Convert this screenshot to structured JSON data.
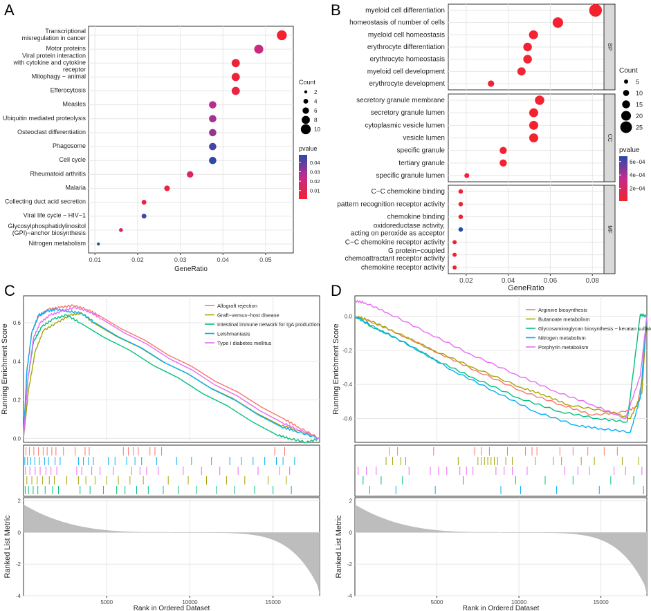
{
  "panels": {
    "a": {
      "letter": "A",
      "chart_data": {
        "type": "scatter",
        "categories": [
          "Transcriptional\nmisregulation in cancer",
          "Motor proteins",
          "Viral protein interaction\nwith cytokine and cytokine\nreceptor",
          "Mitophagy − animal",
          "Efferocytosis",
          "Measles",
          "Ubiquitin mediated proteolysis",
          "Osteoclast differentiation",
          "Phagosome",
          "Cell cycle",
          "Rheumatoid arthritis",
          "Malaria",
          "Collecting duct acid secretion",
          "Viral life cycle − HIV−1",
          "Glycosylphosphatidylinositol\n(GPI)−anchor biosynthesis",
          "Nitrogen metabolism"
        ],
        "gene_ratio": [
          0.0538,
          0.0484,
          0.043,
          0.043,
          0.043,
          0.0376,
          0.0376,
          0.0376,
          0.0376,
          0.0376,
          0.0323,
          0.0269,
          0.0215,
          0.0215,
          0.0161,
          0.0108
        ],
        "count": [
          10,
          9,
          8,
          8,
          8,
          7,
          7,
          7,
          7,
          7,
          6,
          5,
          4,
          4,
          3,
          2
        ],
        "pvalue": [
          0.001,
          0.022,
          0.004,
          0.004,
          0.006,
          0.026,
          0.029,
          0.031,
          0.044,
          0.047,
          0.012,
          0.006,
          0.006,
          0.045,
          0.012,
          0.048
        ],
        "xlabel": "GeneRatio",
        "xticks": [
          "0.01",
          "0.02",
          "0.03",
          "0.04",
          "0.05"
        ],
        "xtick_values": [
          0.01,
          0.02,
          0.03,
          0.04,
          0.05
        ],
        "xlim": [
          0.0085,
          0.0565
        ],
        "size_legend": {
          "title": "Count",
          "labels": [
            "2",
            "4",
            "6",
            "8",
            "10"
          ],
          "values": [
            2,
            4,
            6,
            8,
            10
          ]
        },
        "color_legend": {
          "title": "pvalue",
          "labels": [
            "0.04",
            "0.03",
            "0.02",
            "0.01"
          ],
          "values": [
            0.04,
            0.03,
            0.02,
            0.01
          ],
          "range": [
            0.001,
            0.048
          ]
        }
      }
    },
    "b": {
      "letter": "B",
      "chart_data": {
        "type": "scatter",
        "groups": [
          {
            "name": "BP",
            "terms": [
              "myeloid cell differentiation",
              "homeostasis of number of cells",
              "myeloid cell homeostasis",
              "erythrocyte differentiation",
              "erythrocyte homeostasis",
              "myeloid cell development",
              "erythrocyte development"
            ],
            "gene_ratio": [
              0.0815,
              0.0636,
              0.052,
              0.0492,
              0.0492,
              0.0463,
              0.0318
            ],
            "count": [
              28,
              22,
              18,
              17,
              17,
              16,
              11
            ],
            "pvalue": [
              1e-05,
              2e-05,
              2e-05,
              2e-05,
              3e-05,
              3e-05,
              4e-05
            ]
          },
          {
            "name": "CC",
            "terms": [
              "secretory granule membrane",
              "secretory granule lumen",
              "cytoplasmic vesicle lumen",
              "vesicle lumen",
              "specific granule",
              "tertiary granule",
              "specific granule lumen"
            ],
            "gene_ratio": [
              0.0549,
              0.0521,
              0.0521,
              0.0521,
              0.0376,
              0.0376,
              0.0203
            ],
            "count": [
              19,
              18,
              18,
              18,
              13,
              13,
              7
            ],
            "pvalue": [
              2e-05,
              1e-05,
              1e-05,
              1e-05,
              2e-05,
              2e-05,
              2e-05
            ]
          },
          {
            "name": "MF",
            "terms": [
              "C−C chemokine binding",
              "pattern recognition receptor activity",
              "chemokine binding",
              "oxidoreductase activity,\nacting on peroxide as acceptor",
              "C−C chemokine receptor activity",
              "G protein−coupled\nchemoattractant receptor activity",
              "chemokine receptor activity"
            ],
            "gene_ratio": [
              0.0174,
              0.0174,
              0.0174,
              0.0174,
              0.0145,
              0.0145,
              0.0145
            ],
            "count": [
              6,
              6,
              6,
              6,
              5,
              5,
              5
            ],
            "pvalue": [
              2e-05,
              2e-05,
              2e-05,
              0.00068,
              1e-05,
              1e-05,
              1e-05
            ]
          }
        ],
        "xlabel": "GeneRatio",
        "xticks": [
          "0.02",
          "0.04",
          "0.06",
          "0.08"
        ],
        "xtick_values": [
          0.02,
          0.04,
          0.06,
          0.08
        ],
        "xlim": [
          0.0115,
          0.0855
        ],
        "size_legend": {
          "title": "Count",
          "labels": [
            "5",
            "10",
            "15",
            "20",
            "25"
          ],
          "values": [
            5,
            10,
            15,
            20,
            25
          ]
        },
        "color_legend": {
          "title": "pvalue",
          "labels": [
            "6e−04",
            "4e−04",
            "2e−04"
          ],
          "values": [
            0.0006,
            0.0004,
            0.0002
          ],
          "range": [
            1e-05,
            0.00068
          ]
        }
      }
    },
    "c": {
      "letter": "C",
      "chart_data": {
        "type": "line",
        "ylabel_top": "Running Enrichment Score",
        "ylabel_bottom": "Ranked List Metric",
        "xlabel": "Rank in Ordered Dataset",
        "xticks": [
          "5000",
          "10000",
          "15000"
        ],
        "xtick_values": [
          5000,
          10000,
          15000
        ],
        "xlim": [
          0,
          17800
        ],
        "yticks_top": [
          "0.0",
          "0.2",
          "0.4",
          "0.6"
        ],
        "ytick_values_top": [
          0,
          0.2,
          0.4,
          0.6
        ],
        "ylim_top": [
          -0.02,
          0.74
        ],
        "yticks_bottom": [
          "2",
          "0",
          "-2",
          "-4"
        ],
        "ytick_values_bottom": [
          2,
          0,
          -2,
          -4
        ],
        "ylim_bottom": [
          -4,
          2.2
        ],
        "series": [
          {
            "name": "Allograft rejection",
            "color": "#f8766d",
            "x": [
              0,
              200,
              500,
              900,
              1500,
              2200,
              3000,
              3800,
              4500,
              15700,
              16500,
              17800
            ],
            "y": [
              0,
              0.35,
              0.55,
              0.63,
              0.67,
              0.68,
              0.69,
              0.67,
              0.64,
              0.1,
              0.06,
              0
            ]
          },
          {
            "name": "Graft−versus−host disease",
            "color": "#a3a500",
            "x": [
              0,
              300,
              700,
              1200,
              2000,
              2800,
              3500,
              4200,
              15400,
              16200,
              17800
            ],
            "y": [
              0,
              0.25,
              0.45,
              0.56,
              0.6,
              0.64,
              0.65,
              0.6,
              0.07,
              0.05,
              0
            ]
          },
          {
            "name": "Intestinal immune network for IgA production",
            "color": "#00bf7d",
            "x": [
              0,
              250,
              600,
              1100,
              1800,
              2600,
              3400,
              15200,
              16000,
              17000,
              17800
            ],
            "y": [
              0,
              0.3,
              0.5,
              0.58,
              0.62,
              0.64,
              0.6,
              0.02,
              0.0,
              -0.02,
              0
            ]
          },
          {
            "name": "Leishmaniasis",
            "color": "#00b0f6",
            "x": [
              0,
              200,
              500,
              900,
              1400,
              2000,
              2700,
              3500,
              4300,
              15500,
              16300,
              17800
            ],
            "y": [
              0,
              0.35,
              0.55,
              0.64,
              0.66,
              0.67,
              0.66,
              0.65,
              0.6,
              0.06,
              0.04,
              0
            ]
          },
          {
            "name": "Type I diabetes mellitus",
            "color": "#e76bf3",
            "x": [
              0,
              250,
              600,
              1000,
              1600,
              2300,
              3100,
              3900,
              4700,
              15600,
              16400,
              17800
            ],
            "y": [
              0,
              0.3,
              0.52,
              0.6,
              0.64,
              0.66,
              0.68,
              0.66,
              0.62,
              0.08,
              0.05,
              0
            ]
          }
        ],
        "hits": [
          {
            "color": "#f8766d",
            "ranks": [
              150,
              350,
              620,
              900,
              1180,
              1420,
              1700,
              1950,
              2400,
              3100,
              3700,
              3950,
              6000,
              6300,
              6600,
              6900,
              7600,
              7900,
              8300,
              15100,
              15700
            ]
          },
          {
            "color": "#00b0f6",
            "ranks": [
              80,
              240,
              420,
              680,
              950,
              1260,
              1500,
              1900,
              2200,
              3300,
              3600,
              3900,
              4200,
              5100,
              5500,
              6200,
              6700,
              7100,
              8000,
              9200,
              10100,
              11300,
              12400,
              13100,
              13800,
              14500,
              15200,
              15600,
              16300
            ]
          },
          {
            "color": "#e76bf3",
            "ranks": [
              120,
              380,
              700,
              1000,
              1350,
              1650,
              2000,
              3200,
              3500,
              4100,
              4600,
              5400,
              6500,
              7000,
              7400,
              8100,
              9600,
              10700,
              11800,
              12900,
              14100,
              15400,
              16000
            ]
          },
          {
            "color": "#a3a500",
            "ranks": [
              200,
              500,
              820,
              1150,
              1550,
              1850,
              2600,
              3300,
              3750,
              4300,
              5000,
              5700,
              6400,
              7200,
              8700,
              9900,
              11000,
              12200,
              13300,
              14700,
              15800
            ]
          },
          {
            "color": "#00bf7d",
            "ranks": [
              100,
              300,
              580,
              860,
              1300,
              1750,
              2100,
              3400,
              4000,
              4800,
              5600,
              6100,
              6800,
              7500,
              8400,
              9300,
              10400,
              11600,
              12700,
              13900,
              15000,
              16100
            ]
          }
        ]
      }
    },
    "d": {
      "letter": "D",
      "chart_data": {
        "type": "line",
        "ylabel_top": "Running Enrichment Score",
        "ylabel_bottom": "Ranked List Metric",
        "xlabel": "Rank in Ordered Dataset",
        "xticks": [
          "5000",
          "10000",
          "15000"
        ],
        "xtick_values": [
          5000,
          10000,
          15000
        ],
        "xlim": [
          0,
          17800
        ],
        "yticks_top": [
          "0.0",
          "-0.2",
          "-0.4",
          "-0.6"
        ],
        "ytick_values_top": [
          0,
          -0.2,
          -0.4,
          -0.6
        ],
        "ylim_top": [
          -0.74,
          0.12
        ],
        "yticks_bottom": [
          "2",
          "0",
          "-2",
          "-4"
        ],
        "ytick_values_bottom": [
          2,
          0,
          -2,
          -4
        ],
        "ylim_bottom": [
          -4,
          2.2
        ],
        "series": [
          {
            "name": "Arginine biosynthesis",
            "color": "#f8766d",
            "x": [
              0,
              1200,
              2600,
              5200,
              7400,
              10200,
              12600,
              14500,
              16500,
              17200,
              17500,
              17800
            ],
            "y": [
              0,
              -0.04,
              -0.1,
              -0.22,
              -0.32,
              -0.44,
              -0.52,
              -0.58,
              -0.56,
              -0.53,
              -0.38,
              0
            ]
          },
          {
            "name": "Butanoate metabolism",
            "color": "#a3a500",
            "x": [
              0,
              800,
              2200,
              4800,
              7200,
              10200,
              11500,
              13000,
              15500,
              16800,
              17500,
              17800
            ],
            "y": [
              0,
              -0.02,
              -0.08,
              -0.2,
              -0.3,
              -0.42,
              -0.46,
              -0.52,
              -0.56,
              -0.6,
              -0.45,
              0
            ]
          },
          {
            "name": "Glycosaminoglycan biosynthesis − keratan sulfate",
            "color": "#00bf7d",
            "x": [
              0,
              1000,
              2400,
              5000,
              7200,
              10000,
              12500,
              14800,
              16600,
              17400,
              17800
            ],
            "y": [
              0,
              -0.06,
              -0.12,
              -0.26,
              -0.36,
              -0.48,
              -0.56,
              -0.6,
              -0.62,
              0.01,
              0
            ]
          },
          {
            "name": "Nitrogen metabolism",
            "color": "#00b0f6",
            "x": [
              0,
              1500,
              3500,
              6000,
              8500,
              11000,
              13500,
              15000,
              16800,
              17400,
              17800
            ],
            "y": [
              0,
              -0.08,
              -0.18,
              -0.32,
              -0.44,
              -0.56,
              -0.64,
              -0.66,
              -0.68,
              -0.48,
              0
            ]
          },
          {
            "name": "Porphyrin metabolism",
            "color": "#e76bf3",
            "x": [
              0,
              600,
              2000,
              4500,
              7000,
              9800,
              12200,
              14500,
              16500,
              17400,
              17800
            ],
            "y": [
              0.09,
              0.08,
              0.02,
              -0.1,
              -0.22,
              -0.34,
              -0.44,
              -0.52,
              -0.6,
              -0.35,
              0
            ]
          }
        ],
        "hits": [
          {
            "color": "#f8766d",
            "ranks": [
              2100,
              2600,
              4800,
              7300,
              7700,
              8200,
              9300,
              10400,
              10800,
              11100,
              12500,
              13300,
              14200,
              15200,
              16000
            ]
          },
          {
            "color": "#a3a500",
            "ranks": [
              1900,
              2300,
              2800,
              3100,
              6300,
              7500,
              7700,
              7900,
              8100,
              8300,
              8500,
              8700,
              9200,
              9600,
              11000,
              12100,
              12600,
              13800,
              14600,
              16300,
              17300
            ]
          },
          {
            "color": "#e76bf3",
            "ranks": [
              200,
              700,
              1300,
              3300,
              4600,
              5100,
              5600,
              6400,
              6800,
              7200,
              8600,
              9100,
              9600,
              10500,
              12800,
              13600,
              14300,
              15800,
              16500,
              17500
            ]
          },
          {
            "color": "#00bf7d",
            "ranks": [
              500,
              1600,
              2900,
              6600,
              9800,
              11600,
              13300,
              15600,
              17000
            ]
          },
          {
            "color": "#00b0f6",
            "ranks": [
              900,
              2500,
              4900,
              8900,
              10100,
              12300,
              14900,
              17600
            ]
          }
        ]
      }
    }
  }
}
